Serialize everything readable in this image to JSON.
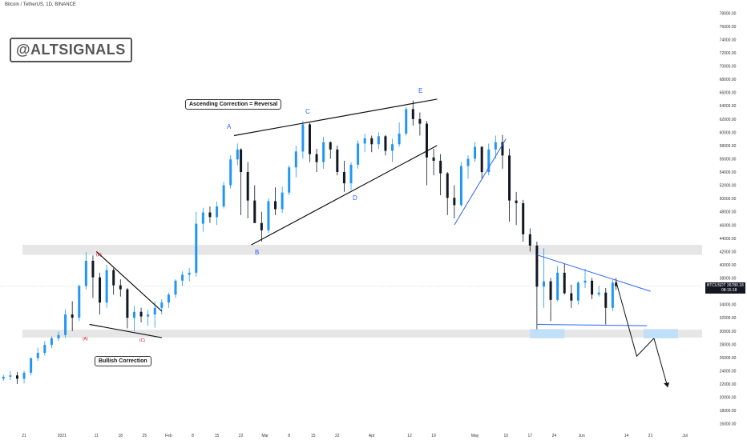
{
  "header": {
    "symbol_title": "Bitcoin / TetherUS, 1D, BINANCE"
  },
  "watermark": "@ALTSIGNALS",
  "annotations": {
    "ascending_label": "Ascending Correction = Reversal",
    "bullish_label": "Bullish Correction",
    "wave_A": "A",
    "wave_B": "B",
    "wave_C": "C",
    "wave_D": "D",
    "wave_E": "E",
    "small_A": "(A)",
    "small_B": "(B)",
    "small_C": "(C)"
  },
  "price_tag": {
    "symbol": "BTCUSDT",
    "price": "36780.18",
    "countdown": "08:15:18"
  },
  "colors": {
    "up_candle": "#2196f3",
    "down_candle": "#131722",
    "zone_fill": "#e6e6e6",
    "accent_blue": "#2962ff",
    "target_box": "#bbdefb"
  },
  "chart_data": {
    "type": "candlestick",
    "symbol": "BTCUSDT",
    "timeframe": "1D",
    "exchange": "BINANCE",
    "y_ticks": [
      16000,
      18000,
      20000,
      22000,
      24000,
      26000,
      28000,
      30000,
      32000,
      34000,
      36000,
      38000,
      40000,
      42000,
      44000,
      46000,
      48000,
      50000,
      52000,
      54000,
      56000,
      58000,
      60000,
      62000,
      64000,
      66000,
      68000,
      70000,
      72000,
      74000,
      76000,
      78000
    ],
    "y_tick_labels": [
      "16000.00",
      "18000.00",
      "20000.00",
      "22000.00",
      "24000.00",
      "26000.00",
      "28000.00",
      "30000.00",
      "32000.00",
      "34000.00",
      "36000.00",
      "38000.00",
      "40000.00",
      "42000.00",
      "44000.00",
      "46000.00",
      "48000.00",
      "50000.00",
      "52000.00",
      "54000.00",
      "56000.00",
      "58000.00",
      "60000.00",
      "62000.00",
      "64000.00",
      "66000.00",
      "68000.00",
      "70000.00",
      "72000.00",
      "74000.00",
      "76000.00",
      "78000.00"
    ],
    "ylim": [
      15000,
      79000
    ],
    "x_ticks": [
      {
        "label": "21",
        "date": "2020-12-21"
      },
      {
        "label": "2021",
        "date": "2021-01-01"
      },
      {
        "label": "11",
        "date": "2021-01-11"
      },
      {
        "label": "18",
        "date": "2021-01-18"
      },
      {
        "label": "25",
        "date": "2021-01-25"
      },
      {
        "label": "Feb",
        "date": "2021-02-01"
      },
      {
        "label": "8",
        "date": "2021-02-08"
      },
      {
        "label": "15",
        "date": "2021-02-15"
      },
      {
        "label": "22",
        "date": "2021-02-22"
      },
      {
        "label": "Mar",
        "date": "2021-03-01"
      },
      {
        "label": "8",
        "date": "2021-03-08"
      },
      {
        "label": "15",
        "date": "2021-03-15"
      },
      {
        "label": "22",
        "date": "2021-03-22"
      },
      {
        "label": "Apr",
        "date": "2021-04-01"
      },
      {
        "label": "12",
        "date": "2021-04-12"
      },
      {
        "label": "19",
        "date": "2021-04-19"
      },
      {
        "label": "May",
        "date": "2021-05-01"
      },
      {
        "label": "10",
        "date": "2021-05-10"
      },
      {
        "label": "17",
        "date": "2021-05-17"
      },
      {
        "label": "24",
        "date": "2021-05-24"
      },
      {
        "label": "Jun",
        "date": "2021-06-01"
      },
      {
        "label": "14",
        "date": "2021-06-14"
      },
      {
        "label": "21",
        "date": "2021-06-21"
      },
      {
        "label": "Jul",
        "date": "2021-07-01"
      }
    ],
    "x_range": [
      "2020-12-14",
      "2021-07-06"
    ],
    "current_price": 36780.18,
    "horizontal_zones": [
      [
        29000,
        30200
      ],
      [
        41500,
        43000
      ]
    ],
    "candles": [
      {
        "date": "2020-12-15",
        "o": 22800,
        "h": 23400,
        "l": 22500,
        "c": 23100
      },
      {
        "date": "2020-12-17",
        "o": 23100,
        "h": 24000,
        "l": 22600,
        "c": 23300
      },
      {
        "date": "2020-12-19",
        "o": 23300,
        "h": 23800,
        "l": 22000,
        "c": 22800
      },
      {
        "date": "2020-12-21",
        "o": 22800,
        "h": 24000,
        "l": 22100,
        "c": 23700
      },
      {
        "date": "2020-12-23",
        "o": 23700,
        "h": 26000,
        "l": 23300,
        "c": 25900
      },
      {
        "date": "2020-12-25",
        "o": 25900,
        "h": 27500,
        "l": 25500,
        "c": 26700
      },
      {
        "date": "2020-12-27",
        "o": 26700,
        "h": 28500,
        "l": 26300,
        "c": 27900
      },
      {
        "date": "2020-12-29",
        "o": 27900,
        "h": 29200,
        "l": 27400,
        "c": 28900
      },
      {
        "date": "2020-12-31",
        "o": 28900,
        "h": 29900,
        "l": 28500,
        "c": 29400
      },
      {
        "date": "2021-01-02",
        "o": 29400,
        "h": 33300,
        "l": 29000,
        "c": 32500
      },
      {
        "date": "2021-01-04",
        "o": 32500,
        "h": 34500,
        "l": 30000,
        "c": 32000
      },
      {
        "date": "2021-01-06",
        "o": 32000,
        "h": 37000,
        "l": 31500,
        "c": 36800
      },
      {
        "date": "2021-01-08",
        "o": 36800,
        "h": 41900,
        "l": 36300,
        "c": 40600
      },
      {
        "date": "2021-01-10",
        "o": 40600,
        "h": 41400,
        "l": 35000,
        "c": 38100
      },
      {
        "date": "2021-01-12",
        "o": 38100,
        "h": 38800,
        "l": 32500,
        "c": 34300
      },
      {
        "date": "2021-01-14",
        "o": 34300,
        "h": 40000,
        "l": 33500,
        "c": 39200
      },
      {
        "date": "2021-01-16",
        "o": 39200,
        "h": 39500,
        "l": 35500,
        "c": 36900
      },
      {
        "date": "2021-01-18",
        "o": 36900,
        "h": 37800,
        "l": 35200,
        "c": 36300
      },
      {
        "date": "2021-01-20",
        "o": 36300,
        "h": 36500,
        "l": 30400,
        "c": 32000
      },
      {
        "date": "2021-01-22",
        "o": 32000,
        "h": 33800,
        "l": 30000,
        "c": 32900
      },
      {
        "date": "2021-01-24",
        "o": 32900,
        "h": 33500,
        "l": 31300,
        "c": 32200
      },
      {
        "date": "2021-01-26",
        "o": 32200,
        "h": 33200,
        "l": 30800,
        "c": 32500
      },
      {
        "date": "2021-01-28",
        "o": 32500,
        "h": 34500,
        "l": 30500,
        "c": 33500
      },
      {
        "date": "2021-01-30",
        "o": 33500,
        "h": 34800,
        "l": 32500,
        "c": 34300
      },
      {
        "date": "2021-02-01",
        "o": 34300,
        "h": 35800,
        "l": 33500,
        "c": 35500
      },
      {
        "date": "2021-02-03",
        "o": 35500,
        "h": 37800,
        "l": 35000,
        "c": 37600
      },
      {
        "date": "2021-02-05",
        "o": 37600,
        "h": 39000,
        "l": 36800,
        "c": 38500
      },
      {
        "date": "2021-02-07",
        "o": 38500,
        "h": 39500,
        "l": 37500,
        "c": 38800
      },
      {
        "date": "2021-02-09",
        "o": 38800,
        "h": 48000,
        "l": 38200,
        "c": 46200
      },
      {
        "date": "2021-02-11",
        "o": 46200,
        "h": 48600,
        "l": 45000,
        "c": 47900
      },
      {
        "date": "2021-02-13",
        "o": 47900,
        "h": 48800,
        "l": 46300,
        "c": 47200
      },
      {
        "date": "2021-02-15",
        "o": 47200,
        "h": 49500,
        "l": 46000,
        "c": 48800
      },
      {
        "date": "2021-02-17",
        "o": 48800,
        "h": 52500,
        "l": 48500,
        "c": 52000
      },
      {
        "date": "2021-02-19",
        "o": 52000,
        "h": 56500,
        "l": 51500,
        "c": 55900
      },
      {
        "date": "2021-02-21",
        "o": 55900,
        "h": 58300,
        "l": 55000,
        "c": 57400
      },
      {
        "date": "2021-02-22",
        "o": 57400,
        "h": 57600,
        "l": 47500,
        "c": 54000
      },
      {
        "date": "2021-02-24",
        "o": 54000,
        "h": 55500,
        "l": 47000,
        "c": 49700
      },
      {
        "date": "2021-02-26",
        "o": 49700,
        "h": 52000,
        "l": 46500,
        "c": 46300
      },
      {
        "date": "2021-02-28",
        "o": 46300,
        "h": 48000,
        "l": 43500,
        "c": 45200
      },
      {
        "date": "2021-03-02",
        "o": 45200,
        "h": 50000,
        "l": 44800,
        "c": 49600
      },
      {
        "date": "2021-03-04",
        "o": 49600,
        "h": 51700,
        "l": 47500,
        "c": 48400
      },
      {
        "date": "2021-03-06",
        "o": 48400,
        "h": 51800,
        "l": 47800,
        "c": 50900
      },
      {
        "date": "2021-03-08",
        "o": 50900,
        "h": 55000,
        "l": 50500,
        "c": 54700
      },
      {
        "date": "2021-03-10",
        "o": 54700,
        "h": 58000,
        "l": 53200,
        "c": 57100
      },
      {
        "date": "2021-03-12",
        "o": 57100,
        "h": 61700,
        "l": 56000,
        "c": 61200
      },
      {
        "date": "2021-03-14",
        "o": 61200,
        "h": 61400,
        "l": 55500,
        "c": 56700
      },
      {
        "date": "2021-03-16",
        "o": 56700,
        "h": 57500,
        "l": 54000,
        "c": 55500
      },
      {
        "date": "2021-03-18",
        "o": 55500,
        "h": 59300,
        "l": 54500,
        "c": 58500
      },
      {
        "date": "2021-03-20",
        "o": 58500,
        "h": 58600,
        "l": 56000,
        "c": 57400
      },
      {
        "date": "2021-03-22",
        "o": 57400,
        "h": 58000,
        "l": 53500,
        "c": 54000
      },
      {
        "date": "2021-03-24",
        "o": 54000,
        "h": 55700,
        "l": 51000,
        "c": 52300
      },
      {
        "date": "2021-03-26",
        "o": 52300,
        "h": 55500,
        "l": 51300,
        "c": 55100
      },
      {
        "date": "2021-03-28",
        "o": 55100,
        "h": 58800,
        "l": 54500,
        "c": 58300
      },
      {
        "date": "2021-03-30",
        "o": 58300,
        "h": 59800,
        "l": 57000,
        "c": 59100
      },
      {
        "date": "2021-04-01",
        "o": 59100,
        "h": 59500,
        "l": 57000,
        "c": 58200
      },
      {
        "date": "2021-04-03",
        "o": 58200,
        "h": 60000,
        "l": 57500,
        "c": 59400
      },
      {
        "date": "2021-04-05",
        "o": 59400,
        "h": 59600,
        "l": 56500,
        "c": 57200
      },
      {
        "date": "2021-04-07",
        "o": 57200,
        "h": 59000,
        "l": 55500,
        "c": 58200
      },
      {
        "date": "2021-04-09",
        "o": 58200,
        "h": 61500,
        "l": 57800,
        "c": 59800
      },
      {
        "date": "2021-04-11",
        "o": 59800,
        "h": 63800,
        "l": 59500,
        "c": 63500
      },
      {
        "date": "2021-04-13",
        "o": 63500,
        "h": 64800,
        "l": 61000,
        "c": 62000
      },
      {
        "date": "2021-04-15",
        "o": 62000,
        "h": 63000,
        "l": 59500,
        "c": 61300
      },
      {
        "date": "2021-04-17",
        "o": 61300,
        "h": 61700,
        "l": 52000,
        "c": 56200
      },
      {
        "date": "2021-04-19",
        "o": 56200,
        "h": 57500,
        "l": 53500,
        "c": 55700
      },
      {
        "date": "2021-04-21",
        "o": 55700,
        "h": 56700,
        "l": 50500,
        "c": 53800
      },
      {
        "date": "2021-04-23",
        "o": 53800,
        "h": 54000,
        "l": 47500,
        "c": 50100
      },
      {
        "date": "2021-04-25",
        "o": 50100,
        "h": 52000,
        "l": 47000,
        "c": 49000
      },
      {
        "date": "2021-04-27",
        "o": 49000,
        "h": 55500,
        "l": 48800,
        "c": 54900
      },
      {
        "date": "2021-04-29",
        "o": 54900,
        "h": 56500,
        "l": 53000,
        "c": 56000
      },
      {
        "date": "2021-05-01",
        "o": 56000,
        "h": 58500,
        "l": 55500,
        "c": 57800
      },
      {
        "date": "2021-05-03",
        "o": 57800,
        "h": 57900,
        "l": 53000,
        "c": 54000
      },
      {
        "date": "2021-05-05",
        "o": 54000,
        "h": 58300,
        "l": 53500,
        "c": 57400
      },
      {
        "date": "2021-05-07",
        "o": 57400,
        "h": 59500,
        "l": 56000,
        "c": 58500
      },
      {
        "date": "2021-05-09",
        "o": 58500,
        "h": 59600,
        "l": 54500,
        "c": 56500
      },
      {
        "date": "2021-05-11",
        "o": 56500,
        "h": 57500,
        "l": 46500,
        "c": 49700
      },
      {
        "date": "2021-05-13",
        "o": 49700,
        "h": 51000,
        "l": 46000,
        "c": 49300
      },
      {
        "date": "2021-05-15",
        "o": 49300,
        "h": 49800,
        "l": 43500,
        "c": 44600
      },
      {
        "date": "2021-05-17",
        "o": 44600,
        "h": 45500,
        "l": 42000,
        "c": 42900
      },
      {
        "date": "2021-05-19",
        "o": 42900,
        "h": 43500,
        "l": 30000,
        "c": 36700
      },
      {
        "date": "2021-05-21",
        "o": 36700,
        "h": 42500,
        "l": 33500,
        "c": 37500
      },
      {
        "date": "2021-05-23",
        "o": 37500,
        "h": 38000,
        "l": 31500,
        "c": 34700
      },
      {
        "date": "2021-05-25",
        "o": 34700,
        "h": 39800,
        "l": 34500,
        "c": 38800
      },
      {
        "date": "2021-05-27",
        "o": 38800,
        "h": 40200,
        "l": 35500,
        "c": 35700
      },
      {
        "date": "2021-05-29",
        "o": 35700,
        "h": 37000,
        "l": 33500,
        "c": 34600
      },
      {
        "date": "2021-05-31",
        "o": 34600,
        "h": 37500,
        "l": 34000,
        "c": 37300
      },
      {
        "date": "2021-06-02",
        "o": 37300,
        "h": 39400,
        "l": 36500,
        "c": 37600
      },
      {
        "date": "2021-06-04",
        "o": 37600,
        "h": 38000,
        "l": 34800,
        "c": 35500
      },
      {
        "date": "2021-06-06",
        "o": 35500,
        "h": 36800,
        "l": 35200,
        "c": 35800
      },
      {
        "date": "2021-06-08",
        "o": 35800,
        "h": 36500,
        "l": 31000,
        "c": 33500
      },
      {
        "date": "2021-06-10",
        "o": 33500,
        "h": 37700,
        "l": 33000,
        "c": 37300
      },
      {
        "date": "2021-06-11",
        "o": 37300,
        "h": 38000,
        "l": 36200,
        "c": 36780
      }
    ],
    "trendlines": [
      {
        "name": "ascending-upper",
        "from": {
          "date": "2021-02-20",
          "price": 59500
        },
        "to": {
          "date": "2021-04-20",
          "price": 65000
        }
      },
      {
        "date_note": "",
        "name": "ascending-lower",
        "from": {
          "date": "2021-02-25",
          "price": 43000
        },
        "to": {
          "date": "2021-04-20",
          "price": 58000
        }
      },
      {
        "name": "bullish-correction-top",
        "from": {
          "date": "2021-01-11",
          "price": 42000
        },
        "to": {
          "date": "2021-01-30",
          "price": 33000
        }
      },
      {
        "name": "bullish-correction-bottom",
        "from": {
          "date": "2021-01-09",
          "price": 31000
        },
        "to": {
          "date": "2021-01-30",
          "price": 29000
        }
      },
      {
        "name": "may-rising",
        "from": {
          "date": "2021-04-25",
          "price": 46000
        },
        "to": {
          "date": "2021-05-10",
          "price": 59000
        }
      },
      {
        "name": "triangle-top",
        "from": {
          "date": "2021-05-19",
          "price": 41500
        },
        "to": {
          "date": "2021-06-21",
          "price": 36000
        }
      },
      {
        "name": "triangle-bottom",
        "from": {
          "date": "2021-05-19",
          "price": 31000
        },
        "to": {
          "date": "2021-06-20",
          "price": 30800
        }
      }
    ],
    "projection": [
      {
        "date": "2021-06-11",
        "price": 37500
      },
      {
        "date": "2021-06-17",
        "price": 26200
      },
      {
        "date": "2021-06-22",
        "price": 28900
      },
      {
        "date": "2021-06-26",
        "price": 21500
      }
    ],
    "wave_points": [
      {
        "label": "A",
        "date": "2021-02-21",
        "price": 60500
      },
      {
        "label": "B",
        "date": "2021-02-28",
        "price": 42000
      },
      {
        "label": "C",
        "date": "2021-03-13",
        "price": 62500
      },
      {
        "label": "D",
        "date": "2021-03-25",
        "price": 49500
      },
      {
        "label": "E",
        "date": "2021-04-13",
        "price": 66000
      },
      {
        "label": "(A)",
        "date": "2021-01-04",
        "price": 28000
      },
      {
        "label": "(B)",
        "date": "2021-01-14",
        "price": 41000
      },
      {
        "label": "(C)",
        "date": "2021-01-27",
        "price": 28000
      }
    ]
  }
}
